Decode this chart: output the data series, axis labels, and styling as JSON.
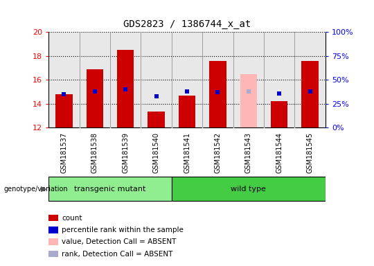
{
  "title": "GDS2823 / 1386744_x_at",
  "samples": [
    "GSM181537",
    "GSM181538",
    "GSM181539",
    "GSM181540",
    "GSM181541",
    "GSM181542",
    "GSM181543",
    "GSM181544",
    "GSM181545"
  ],
  "count_values": [
    14.8,
    16.9,
    18.5,
    13.35,
    14.7,
    17.6,
    16.5,
    14.2,
    17.6
  ],
  "percentile_values": [
    14.8,
    15.05,
    15.2,
    14.65,
    15.0,
    14.95,
    15.05,
    14.85,
    15.0
  ],
  "absent_bar_indices": [
    6
  ],
  "absent_rank_indices": [
    6
  ],
  "absent_rank_value": 15.05,
  "ymin": 12,
  "ymax": 20,
  "yticks": [
    12,
    14,
    16,
    18,
    20
  ],
  "right_ytick_percents": [
    0,
    25,
    50,
    75,
    100
  ],
  "right_ytick_labels": [
    "0%",
    "25%",
    "50%",
    "75%",
    "100%"
  ],
  "group1_label": "transgenic mutant",
  "group2_label": "wild type",
  "group1_indices": [
    0,
    1,
    2,
    3
  ],
  "group2_indices": [
    4,
    5,
    6,
    7,
    8
  ],
  "bar_color": "#cc0000",
  "absent_bar_color": "#ffb6b6",
  "percentile_color": "#0000cc",
  "absent_rank_color": "#aaaacc",
  "group1_bg": "#90ee90",
  "group2_bg": "#44cc44",
  "plot_bg": "#e8e8e8",
  "xticklabel_bg": "#d8d8d8",
  "legend_items": [
    {
      "color": "#cc0000",
      "label": "count"
    },
    {
      "color": "#0000cc",
      "label": "percentile rank within the sample"
    },
    {
      "color": "#ffb6b6",
      "label": "value, Detection Call = ABSENT"
    },
    {
      "color": "#aaaacc",
      "label": "rank, Detection Call = ABSENT"
    }
  ]
}
